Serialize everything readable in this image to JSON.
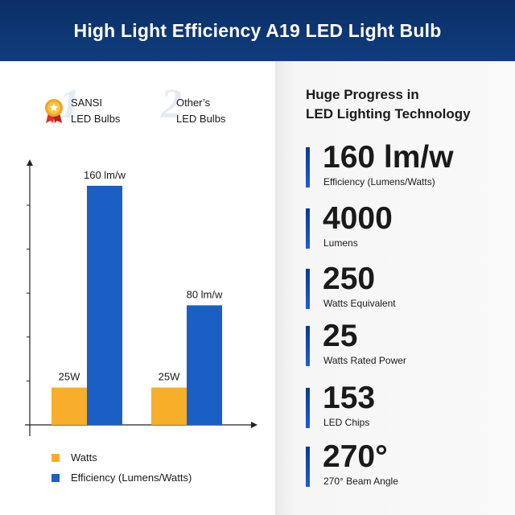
{
  "header": {
    "title": "High Light Efficiency A19 LED Light Bulb"
  },
  "brands": [
    {
      "number": "1",
      "line1": "SANSI",
      "line2": "LED Bulbs"
    },
    {
      "number": "2",
      "line1": "Other’s",
      "line2": "LED Bulbs"
    }
  ],
  "colors": {
    "watts": "#f7ae2a",
    "efficiency": "#1a5fc4",
    "header": "#0b2f66"
  },
  "chart_data": {
    "type": "bar",
    "categories": [
      "SANSI LED Bulbs",
      "Other’s LED Bulbs"
    ],
    "series": [
      {
        "name": "Watts",
        "values": [
          25,
          25
        ],
        "labels": [
          "25W",
          "25W"
        ],
        "color": "#f7ae2a"
      },
      {
        "name": "Efficiency (Lumens/Watts)",
        "values": [
          160,
          80
        ],
        "labels": [
          "160 lm/w",
          "80 lm/w"
        ],
        "color": "#1a5fc4"
      }
    ],
    "title": "",
    "xlabel": "",
    "ylabel": "",
    "ylim": [
      0,
      175
    ],
    "grid": false,
    "legend": "bottom-left"
  },
  "legend": [
    {
      "label": "Watts",
      "color": "#f7ae2a"
    },
    {
      "label": "Efficiency (Lumens/Watts)",
      "color": "#1a5fc4"
    }
  ],
  "right": {
    "heading_line1": "Huge Progress in",
    "heading_line2": "LED Lighting Technology",
    "stats": [
      {
        "value": "160 lm/w",
        "label": "Efficiency (Lumens/Watts)"
      },
      {
        "value": "4000",
        "label": "Lumens"
      },
      {
        "value": "250",
        "label": "Watts Equivalent"
      },
      {
        "value": "25",
        "label": "Watts Rated Power"
      },
      {
        "value": "153",
        "label": "LED Chips"
      },
      {
        "value": "270°",
        "label": "270° Beam Angle"
      }
    ]
  }
}
